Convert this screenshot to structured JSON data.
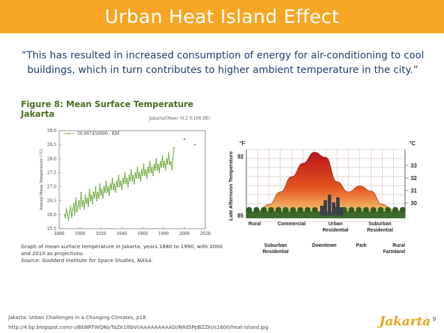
{
  "slide": {
    "title": "Urban Heat Island Effect",
    "quote": "“This has resulted in increased consumption of energy for air-conditioning to cool buildings, which in turn contributes to higher ambient temperature in the city.”",
    "page_number": "9",
    "logo_text": "Jakarta",
    "footer_reference": "Jakarta: Urban Challenges in a Changing Climates, p18",
    "footer_url": "http://4.bp.blogspot.com/-ulBb8RTWQNs/TaZe1lllbVI/AAAAAAAAASI/N8d5PpBZZkI/s1600/heat-island.jpg"
  },
  "colors": {
    "accent": "#f6a623",
    "quote_text": "#1c3d6e",
    "figure_title": "#4a6e1f",
    "series_line": "#6aab3a"
  },
  "figure8": {
    "title": "Figure 8: Mean Surface Temperature Jakarta",
    "station": "Jakarta/Obser (6.2 S.106.8E)",
    "caption": "Graph of mean surface temperature in Jakarta, years 1880 to 1990, with 2000 and 2010 as projections.",
    "source": "Source: Goddard Institute for Space Studies, NASA."
  },
  "chart_data": [
    {
      "type": "line",
      "title": "Figure 8: Mean Surface Temperature Jakarta",
      "ylabel": "Annual Mean Temperature (°C)",
      "xlabel": "",
      "xlim": [
        1880,
        2020
      ],
      "ylim": [
        25.5,
        29.0
      ],
      "x_ticks": [
        1880,
        1900,
        1920,
        1940,
        1960,
        1980,
        2000,
        2020
      ],
      "y_ticks": [
        25.5,
        26.0,
        26.5,
        27.0,
        27.5,
        28.0,
        28.5,
        29.0
      ],
      "legend": "50.967450000 : KM",
      "series": [
        {
          "name": "Annual mean temperature",
          "x": [
            1885,
            1886,
            1887,
            1888,
            1889,
            1890,
            1891,
            1892,
            1893,
            1894,
            1895,
            1896,
            1897,
            1898,
            1899,
            1900,
            1901,
            1902,
            1903,
            1904,
            1905,
            1906,
            1907,
            1908,
            1909,
            1910,
            1911,
            1912,
            1913,
            1914,
            1915,
            1916,
            1917,
            1918,
            1919,
            1920,
            1921,
            1922,
            1923,
            1924,
            1925,
            1926,
            1927,
            1928,
            1929,
            1930,
            1931,
            1932,
            1933,
            1934,
            1935,
            1936,
            1937,
            1938,
            1939,
            1940,
            1941,
            1942,
            1943,
            1944,
            1945,
            1946,
            1947,
            1948,
            1949,
            1950,
            1951,
            1952,
            1953,
            1954,
            1955,
            1956,
            1957,
            1958,
            1959,
            1960,
            1961,
            1962,
            1963,
            1964,
            1965,
            1966,
            1967,
            1968,
            1969,
            1970,
            1971,
            1972,
            1973,
            1974,
            1975,
            1976,
            1977,
            1978,
            1979,
            1980,
            1981,
            1982,
            1983,
            1984,
            1985,
            1986,
            1987,
            1988,
            1989,
            1990
          ],
          "values": [
            26.0,
            25.9,
            26.2,
            26.0,
            25.8,
            26.1,
            26.3,
            25.9,
            26.2,
            26.4,
            26.0,
            26.6,
            26.1,
            26.3,
            26.5,
            26.2,
            26.8,
            26.3,
            26.5,
            26.2,
            26.7,
            26.4,
            26.6,
            26.3,
            26.9,
            26.5,
            26.7,
            26.4,
            26.8,
            26.6,
            27.0,
            26.5,
            26.8,
            26.6,
            27.1,
            26.7,
            26.9,
            26.6,
            27.0,
            26.8,
            27.2,
            26.8,
            27.0,
            26.7,
            27.1,
            26.9,
            27.3,
            26.9,
            27.1,
            26.8,
            27.2,
            27.0,
            27.4,
            27.0,
            27.2,
            26.9,
            27.3,
            27.1,
            27.5,
            27.1,
            27.3,
            27.0,
            27.4,
            27.2,
            27.6,
            27.2,
            27.4,
            27.1,
            27.5,
            27.3,
            27.7,
            27.3,
            27.5,
            27.2,
            27.6,
            27.4,
            27.8,
            27.4,
            27.6,
            27.3,
            27.7,
            27.5,
            27.9,
            27.5,
            27.7,
            27.4,
            27.8,
            27.6,
            28.0,
            27.6,
            27.8,
            27.5,
            27.9,
            27.7,
            28.1,
            27.7,
            27.9,
            27.6,
            28.0,
            27.8,
            28.2,
            27.8,
            27.9,
            27.6,
            28.0,
            28.4
          ]
        },
        {
          "name": "Projections",
          "x": [
            2000,
            2010
          ],
          "values": [
            28.7,
            28.5
          ]
        }
      ]
    },
    {
      "type": "area",
      "title": "",
      "ylabel": "Late Afternoon Temperature",
      "left_unit": "°F",
      "right_unit": "°C",
      "left_ticks": [
        85,
        92
      ],
      "right_ticks": [
        30,
        31,
        32,
        33
      ],
      "ylim": [
        85,
        92
      ],
      "top_categories": [
        "Rural",
        "Commercial",
        "Urban Residential",
        "Suburban Residential"
      ],
      "bottom_categories": [
        "Suburban Residential",
        "Downtown",
        "Park",
        "Rural Farmland"
      ],
      "profile_values": [
        85.2,
        85.5,
        86.3,
        87.8,
        89.6,
        91.2,
        92.5,
        91.9,
        89.0,
        87.8,
        88.5,
        87.9,
        86.3,
        85.7,
        85.4
      ]
    }
  ]
}
